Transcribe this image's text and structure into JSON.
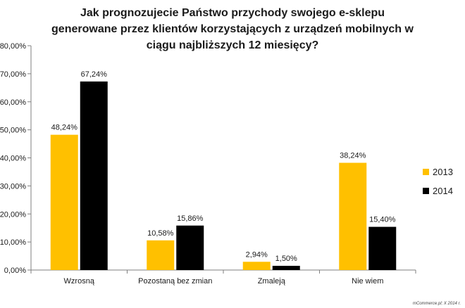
{
  "title_lines": [
    "Jak prognozujecie Państwo przychody swojego e-sklepu",
    "generowane przez klientów korzystających z urządzeń mobilnych w",
    "ciągu najbliższych 12 miesięcy?"
  ],
  "credit": "mCommerce.pl; X 2014 r.",
  "chart_data": {
    "type": "bar",
    "categories": [
      "Wzrosną",
      "Pozostaną bez zmian",
      "Zmaleją",
      "Nie wiem"
    ],
    "series": [
      {
        "name": "2013",
        "color": "#FFC000",
        "values": [
          48.24,
          10.58,
          2.94,
          38.24
        ],
        "labels": [
          "48,24%",
          "10,58%",
          "2,94%",
          "38,24%"
        ]
      },
      {
        "name": "2014",
        "color": "#000000",
        "values": [
          67.24,
          15.86,
          1.5,
          15.4
        ],
        "labels": [
          "67,24%",
          "15,86%",
          "1,50%",
          "15,40%"
        ]
      }
    ],
    "ylim": [
      0,
      80
    ],
    "yticks": [
      0,
      10,
      20,
      30,
      40,
      50,
      60,
      70,
      80
    ],
    "ytick_labels": [
      "0,00%",
      "10,00%",
      "20,00%",
      "30,00%",
      "40,00%",
      "50,00%",
      "60,00%",
      "70,00%",
      "80,00%"
    ],
    "grid": false,
    "legend_position": "right"
  }
}
